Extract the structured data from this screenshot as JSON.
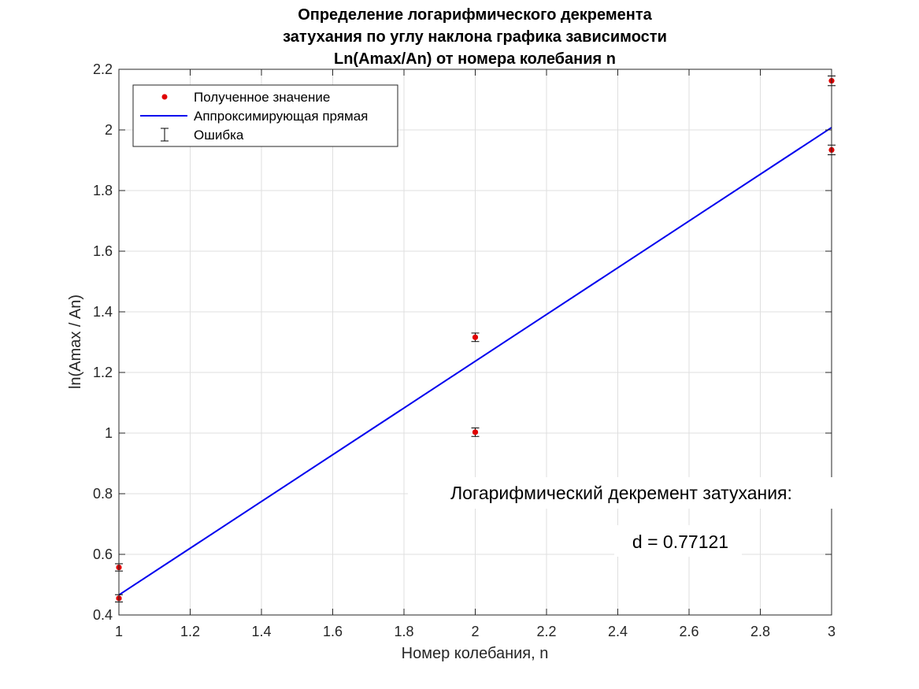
{
  "chart_data": {
    "type": "scatter",
    "title": [
      "Определение логарифмического декремента",
      "затухания по углу наклона графика зависимости",
      "Ln(Amax/An) от номера колебания n"
    ],
    "xlabel": "Номер колебания, n",
    "ylabel": "ln(Amax / An)",
    "xlim": [
      1,
      3
    ],
    "ylim": [
      0.4,
      2.2
    ],
    "xticks": [
      1,
      1.2,
      1.4,
      1.6,
      1.8,
      2,
      2.2,
      2.4,
      2.6,
      2.8,
      3
    ],
    "xtick_labels": [
      "1",
      "1.2",
      "1.4",
      "1.6",
      "1.8",
      "2",
      "2.2",
      "2.4",
      "2.6",
      "2.8",
      "3"
    ],
    "yticks": [
      0.4,
      0.6,
      0.8,
      1,
      1.2,
      1.4,
      1.6,
      1.8,
      2,
      2.2
    ],
    "ytick_labels": [
      "0.4",
      "0.6",
      "0.8",
      "1",
      "1.2",
      "1.4",
      "1.6",
      "1.8",
      "2",
      "2.2"
    ],
    "grid": true,
    "legend_position": "top-left",
    "series": [
      {
        "name": "Полученное значение",
        "kind": "points",
        "color": "#e00000",
        "x": [
          1,
          1,
          2,
          2,
          3,
          3
        ],
        "y": [
          0.557,
          0.455,
          1.316,
          1.003,
          2.162,
          1.934
        ],
        "error": [
          0.012,
          0.012,
          0.014,
          0.014,
          0.016,
          0.016
        ]
      },
      {
        "name": "Аппроксимирующая прямая",
        "kind": "line",
        "color": "#0000ee",
        "x": [
          1,
          3
        ],
        "y": [
          0.466,
          2.008
        ]
      },
      {
        "name": "Ошибка",
        "kind": "errorbar",
        "color": "#000000"
      }
    ],
    "annotations": [
      "Логарифмический декремент затухания:",
      "d = 0.77121"
    ]
  }
}
